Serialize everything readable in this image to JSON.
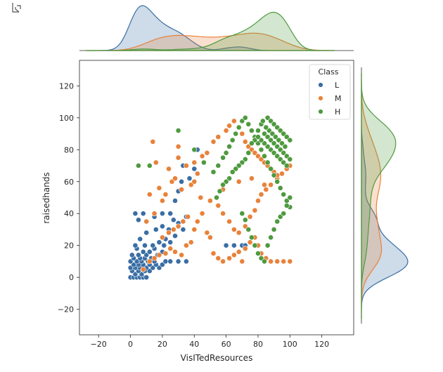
{
  "output_icon": "output-arrow-icon",
  "chart_data": {
    "type": "scatter",
    "subtype": "jointplot",
    "title": "",
    "xlabel": "VisITedResources",
    "ylabel": "raisedhands",
    "xlim": [
      -32,
      140
    ],
    "ylim": [
      -36,
      136
    ],
    "xticks": [
      -20,
      0,
      20,
      40,
      60,
      80,
      100,
      120
    ],
    "yticks": [
      -20,
      0,
      20,
      40,
      60,
      80,
      100,
      120
    ],
    "grid": false,
    "legend": {
      "title": "Class",
      "placement": "top-right"
    },
    "marginals": {
      "top": "kde",
      "right": "kde"
    },
    "series": [
      {
        "name": "L",
        "color": "#3a6ea5",
        "points": [
          [
            0,
            0
          ],
          [
            2,
            0
          ],
          [
            4,
            0
          ],
          [
            6,
            0
          ],
          [
            8,
            0
          ],
          [
            10,
            0
          ],
          [
            3,
            2
          ],
          [
            7,
            2
          ],
          [
            1,
            4
          ],
          [
            5,
            4
          ],
          [
            9,
            4
          ],
          [
            12,
            4
          ],
          [
            0,
            6
          ],
          [
            3,
            6
          ],
          [
            6,
            6
          ],
          [
            10,
            6
          ],
          [
            14,
            6
          ],
          [
            18,
            6
          ],
          [
            2,
            8
          ],
          [
            5,
            8
          ],
          [
            8,
            8
          ],
          [
            12,
            8
          ],
          [
            16,
            8
          ],
          [
            20,
            8
          ],
          [
            0,
            10
          ],
          [
            4,
            10
          ],
          [
            7,
            10
          ],
          [
            11,
            10
          ],
          [
            15,
            10
          ],
          [
            22,
            10
          ],
          [
            25,
            10
          ],
          [
            30,
            10
          ],
          [
            35,
            10
          ],
          [
            2,
            12
          ],
          [
            6,
            12
          ],
          [
            9,
            12
          ],
          [
            13,
            12
          ],
          [
            1,
            14
          ],
          [
            5,
            14
          ],
          [
            10,
            14
          ],
          [
            17,
            14
          ],
          [
            8,
            16
          ],
          [
            12,
            16
          ],
          [
            20,
            16
          ],
          [
            4,
            18
          ],
          [
            15,
            18
          ],
          [
            3,
            20
          ],
          [
            9,
            20
          ],
          [
            14,
            20
          ],
          [
            21,
            20
          ],
          [
            18,
            22
          ],
          [
            25,
            22
          ],
          [
            6,
            24
          ],
          [
            22,
            24
          ],
          [
            28,
            26
          ],
          [
            10,
            28
          ],
          [
            16,
            30
          ],
          [
            24,
            30
          ],
          [
            33,
            30
          ],
          [
            20,
            32
          ],
          [
            30,
            34
          ],
          [
            5,
            36
          ],
          [
            27,
            36
          ],
          [
            15,
            38
          ],
          [
            20,
            40
          ],
          [
            25,
            40
          ],
          [
            35,
            38
          ],
          [
            3,
            40
          ],
          [
            8,
            40
          ],
          [
            28,
            48
          ],
          [
            30,
            54
          ],
          [
            32,
            60
          ],
          [
            37,
            62
          ],
          [
            40,
            68
          ],
          [
            42,
            80
          ],
          [
            33,
            70
          ],
          [
            60,
            20
          ],
          [
            65,
            20
          ],
          [
            70,
            20
          ],
          [
            72,
            20
          ]
        ]
      },
      {
        "name": "M",
        "color": "#e8823a",
        "points": [
          [
            8,
            5
          ],
          [
            12,
            10
          ],
          [
            15,
            12
          ],
          [
            18,
            14
          ],
          [
            22,
            15
          ],
          [
            25,
            18
          ],
          [
            28,
            16
          ],
          [
            32,
            14
          ],
          [
            35,
            20
          ],
          [
            38,
            22
          ],
          [
            20,
            25
          ],
          [
            24,
            28
          ],
          [
            27,
            30
          ],
          [
            30,
            32
          ],
          [
            33,
            35
          ],
          [
            36,
            38
          ],
          [
            40,
            30
          ],
          [
            42,
            35
          ],
          [
            45,
            40
          ],
          [
            48,
            28
          ],
          [
            50,
            25
          ],
          [
            52,
            15
          ],
          [
            55,
            12
          ],
          [
            58,
            10
          ],
          [
            62,
            12
          ],
          [
            65,
            14
          ],
          [
            68,
            16
          ],
          [
            70,
            10
          ],
          [
            72,
            18
          ],
          [
            75,
            22
          ],
          [
            78,
            25
          ],
          [
            80,
            20
          ],
          [
            82,
            15
          ],
          [
            85,
            12
          ],
          [
            88,
            10
          ],
          [
            92,
            10
          ],
          [
            96,
            10
          ],
          [
            100,
            10
          ],
          [
            10,
            35
          ],
          [
            15,
            40
          ],
          [
            20,
            48
          ],
          [
            22,
            52
          ],
          [
            26,
            60
          ],
          [
            28,
            62
          ],
          [
            32,
            55
          ],
          [
            38,
            58
          ],
          [
            40,
            60
          ],
          [
            44,
            50
          ],
          [
            50,
            48
          ],
          [
            55,
            45
          ],
          [
            58,
            40
          ],
          [
            62,
            35
          ],
          [
            65,
            30
          ],
          [
            68,
            28
          ],
          [
            72,
            32
          ],
          [
            75,
            38
          ],
          [
            78,
            42
          ],
          [
            80,
            48
          ],
          [
            82,
            52
          ],
          [
            85,
            55
          ],
          [
            88,
            58
          ],
          [
            92,
            62
          ],
          [
            95,
            65
          ],
          [
            98,
            68
          ],
          [
            100,
            70
          ],
          [
            12,
            52
          ],
          [
            18,
            56
          ],
          [
            24,
            68
          ],
          [
            30,
            75
          ],
          [
            35,
            70
          ],
          [
            40,
            72
          ],
          [
            45,
            76
          ],
          [
            48,
            78
          ],
          [
            52,
            85
          ],
          [
            55,
            88
          ],
          [
            60,
            92
          ],
          [
            62,
            95
          ],
          [
            65,
            98
          ],
          [
            70,
            90
          ],
          [
            72,
            85
          ],
          [
            74,
            82
          ],
          [
            76,
            80
          ],
          [
            78,
            78
          ],
          [
            80,
            76
          ],
          [
            82,
            74
          ],
          [
            84,
            72
          ],
          [
            86,
            70
          ],
          [
            88,
            68
          ],
          [
            90,
            66
          ],
          [
            92,
            64
          ],
          [
            14,
            85
          ],
          [
            16,
            72
          ],
          [
            30,
            82
          ],
          [
            42,
            65
          ],
          [
            58,
            55
          ],
          [
            68,
            60
          ],
          [
            76,
            62
          ],
          [
            84,
            58
          ]
        ]
      },
      {
        "name": "H",
        "color": "#4e9a3f",
        "points": [
          [
            5,
            70
          ],
          [
            12,
            70
          ],
          [
            30,
            92
          ],
          [
            40,
            80
          ],
          [
            46,
            72
          ],
          [
            52,
            66
          ],
          [
            55,
            70
          ],
          [
            58,
            75
          ],
          [
            60,
            78
          ],
          [
            62,
            82
          ],
          [
            64,
            86
          ],
          [
            66,
            90
          ],
          [
            68,
            94
          ],
          [
            70,
            98
          ],
          [
            72,
            100
          ],
          [
            74,
            96
          ],
          [
            76,
            92
          ],
          [
            78,
            88
          ],
          [
            80,
            84
          ],
          [
            82,
            80
          ],
          [
            84,
            76
          ],
          [
            86,
            72
          ],
          [
            88,
            68
          ],
          [
            90,
            64
          ],
          [
            92,
            60
          ],
          [
            94,
            56
          ],
          [
            96,
            52
          ],
          [
            98,
            48
          ],
          [
            100,
            44
          ],
          [
            86,
            100
          ],
          [
            88,
            98
          ],
          [
            90,
            96
          ],
          [
            92,
            94
          ],
          [
            94,
            92
          ],
          [
            96,
            90
          ],
          [
            98,
            88
          ],
          [
            100,
            86
          ],
          [
            84,
            90
          ],
          [
            86,
            88
          ],
          [
            88,
            86
          ],
          [
            90,
            84
          ],
          [
            92,
            82
          ],
          [
            94,
            80
          ],
          [
            96,
            78
          ],
          [
            98,
            76
          ],
          [
            100,
            74
          ],
          [
            82,
            96
          ],
          [
            80,
            92
          ],
          [
            78,
            86
          ],
          [
            76,
            84
          ],
          [
            74,
            78
          ],
          [
            72,
            74
          ],
          [
            70,
            72
          ],
          [
            68,
            70
          ],
          [
            66,
            68
          ],
          [
            64,
            66
          ],
          [
            62,
            62
          ],
          [
            60,
            60
          ],
          [
            58,
            58
          ],
          [
            56,
            54
          ],
          [
            54,
            50
          ],
          [
            70,
            40
          ],
          [
            72,
            36
          ],
          [
            74,
            30
          ],
          [
            76,
            25
          ],
          [
            78,
            20
          ],
          [
            80,
            15
          ],
          [
            82,
            12
          ],
          [
            84,
            10
          ],
          [
            86,
            20
          ],
          [
            88,
            25
          ],
          [
            90,
            30
          ],
          [
            92,
            35
          ],
          [
            94,
            38
          ],
          [
            96,
            40
          ],
          [
            98,
            45
          ],
          [
            100,
            50
          ],
          [
            88,
            80
          ],
          [
            90,
            78
          ],
          [
            92,
            76
          ],
          [
            94,
            74
          ],
          [
            96,
            72
          ],
          [
            98,
            70
          ],
          [
            86,
            82
          ],
          [
            84,
            84
          ],
          [
            82,
            86
          ],
          [
            80,
            88
          ],
          [
            87,
            92
          ],
          [
            89,
            90
          ],
          [
            91,
            88
          ],
          [
            93,
            86
          ],
          [
            95,
            84
          ],
          [
            97,
            82
          ],
          [
            85,
            94
          ],
          [
            83,
            98
          ]
        ]
      }
    ]
  }
}
